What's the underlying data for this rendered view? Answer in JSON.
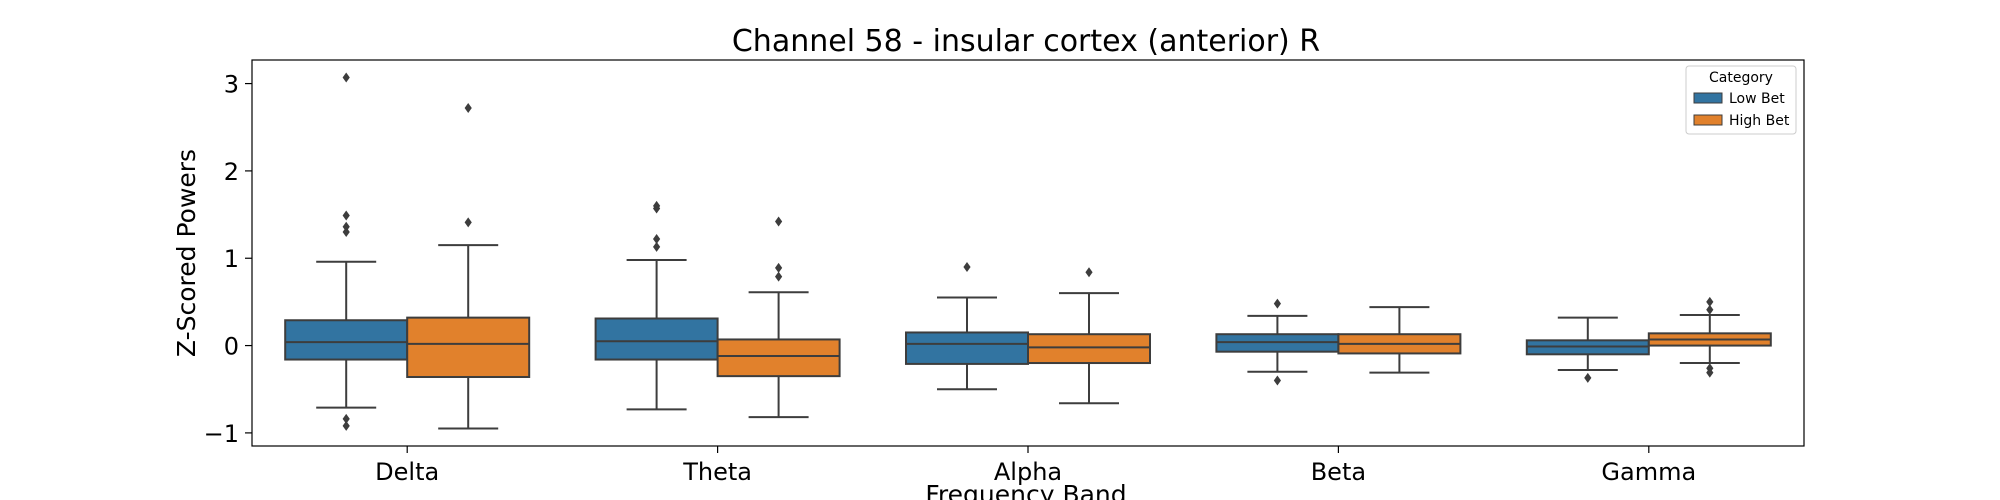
{
  "chart_data": {
    "type": "box",
    "title": "Channel 58 - insular cortex (anterior) R",
    "xlabel": "Frequency Band",
    "ylabel": "Z-Scored Powers",
    "categories": [
      "Delta",
      "Theta",
      "Alpha",
      "Beta",
      "Gamma"
    ],
    "ylim": [
      -1.15,
      3.27
    ],
    "yticks": [
      -1,
      0,
      1,
      2,
      3
    ],
    "ytick_labels": [
      "−1",
      "0",
      "1",
      "2",
      "3"
    ],
    "grid": false,
    "legend": {
      "title": "Category",
      "position": "top-right"
    },
    "series": [
      {
        "name": "Low Bet",
        "color": "#3274a1",
        "boxes": [
          {
            "whislo": -0.71,
            "q1": -0.16,
            "med": 0.04,
            "q3": 0.29,
            "whishi": 0.96,
            "fliers": [
              3.07,
              1.49,
              1.36,
              1.3,
              -0.84,
              -0.92
            ]
          },
          {
            "whislo": -0.73,
            "q1": -0.16,
            "med": 0.05,
            "q3": 0.31,
            "whishi": 0.98,
            "fliers": [
              1.6,
              1.57,
              1.22,
              1.13
            ]
          },
          {
            "whislo": -0.5,
            "q1": -0.21,
            "med": 0.02,
            "q3": 0.15,
            "whishi": 0.55,
            "fliers": [
              0.9
            ]
          },
          {
            "whislo": -0.3,
            "q1": -0.07,
            "med": 0.04,
            "q3": 0.13,
            "whishi": 0.34,
            "fliers": [
              0.48,
              -0.4
            ]
          },
          {
            "whislo": -0.28,
            "q1": -0.1,
            "med": -0.01,
            "q3": 0.06,
            "whishi": 0.32,
            "fliers": [
              -0.37
            ]
          }
        ]
      },
      {
        "name": "High Bet",
        "color": "#e1812c",
        "boxes": [
          {
            "whislo": -0.95,
            "q1": -0.36,
            "med": 0.02,
            "q3": 0.32,
            "whishi": 1.15,
            "fliers": [
              2.72,
              1.41
            ]
          },
          {
            "whislo": -0.82,
            "q1": -0.35,
            "med": -0.12,
            "q3": 0.07,
            "whishi": 0.61,
            "fliers": [
              1.42,
              0.89,
              0.79
            ]
          },
          {
            "whislo": -0.66,
            "q1": -0.2,
            "med": -0.02,
            "q3": 0.13,
            "whishi": 0.6,
            "fliers": [
              0.84
            ]
          },
          {
            "whislo": -0.31,
            "q1": -0.09,
            "med": 0.02,
            "q3": 0.13,
            "whishi": 0.44,
            "fliers": []
          },
          {
            "whislo": -0.2,
            "q1": 0.0,
            "med": 0.07,
            "q3": 0.14,
            "whishi": 0.35,
            "fliers": [
              0.5,
              0.41,
              -0.26,
              -0.31
            ]
          }
        ]
      }
    ]
  }
}
